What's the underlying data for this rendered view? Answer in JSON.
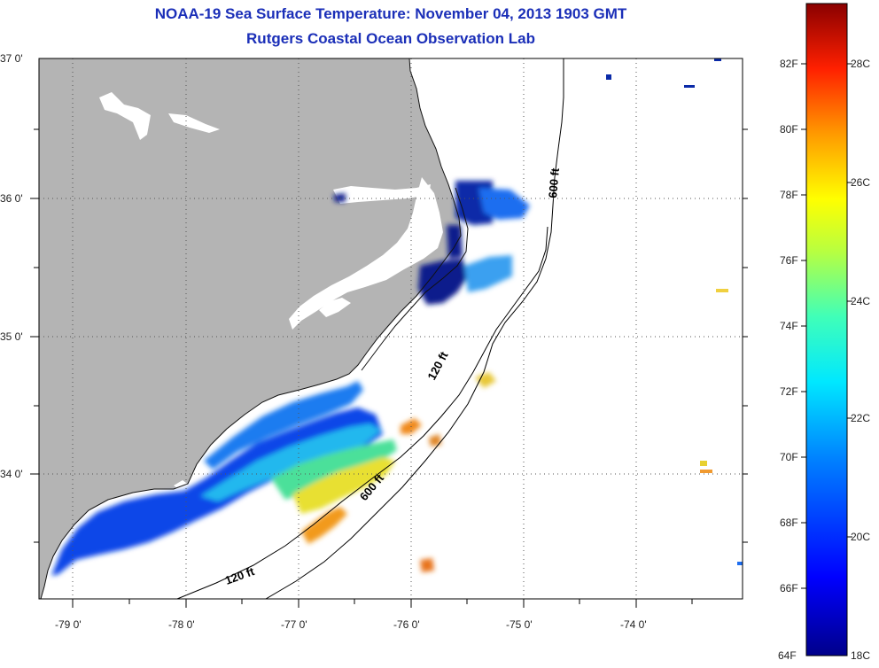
{
  "title_line1": "NOAA-19 Sea Surface Temperature:  November 04, 2013 1903 GMT",
  "title_line2": "Rutgers Coastal Ocean Observation Lab",
  "map": {
    "lat_labels": [
      "37 0'",
      "36 0'",
      "35 0'",
      "34 0'"
    ],
    "lon_labels": [
      "-79 0'",
      "-78 0'",
      "-77 0'",
      "-76 0'",
      "-75 0'",
      "-74 0'"
    ],
    "contour_labels": {
      "c600_north": "600 ft",
      "c120_mid": "120 ft",
      "c600_south": "600 ft",
      "c120_south": "120 ft"
    },
    "colors": {
      "land": "#b4b4b4",
      "ocean_nodata": "#ffffff",
      "graticule": "#444444"
    }
  },
  "colorbar": {
    "fahrenheit_labels": [
      "82F",
      "80F",
      "78F",
      "76F",
      "74F",
      "72F",
      "70F",
      "68F",
      "66F",
      "64F"
    ],
    "celsius_labels": [
      "28C",
      "26C",
      "24C",
      "22C",
      "20C",
      "18C"
    ],
    "range_f": [
      64,
      84
    ],
    "range_c": [
      18,
      29
    ]
  }
}
